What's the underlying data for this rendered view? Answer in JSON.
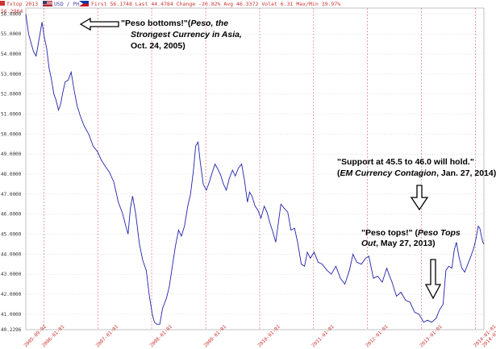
{
  "header": {
    "source": "fxtop 2013",
    "pair": "USD / PHP",
    "stats": "First 56.1748 Last 44.4784 Change -20.82% Avg 46.3372 Volat 6.31 Max/Min 39.97%",
    "top_value": "56.2964",
    "colors": {
      "us_flag_blue": "#3c3b6e",
      "us_flag_red": "#b22234",
      "ph_flag_blue": "#0038a8",
      "ph_flag_red": "#ce1126",
      "text_blue": "#4444aa"
    }
  },
  "annotations": [
    {
      "id": "peso-bottoms",
      "lines": [
        [
          {
            "t": "\"Peso bottoms!\"(",
            "i": false
          },
          {
            "t": "Peso, the",
            "i": true
          }
        ],
        [
          {
            "t": "Strongest Currency in Asia,",
            "i": true
          }
        ],
        [
          {
            "t": "Oct. 24, 2005)",
            "i": false
          }
        ]
      ],
      "arrow": "left"
    },
    {
      "id": "support",
      "lines": [
        [
          {
            "t": "\"Support at 45.5 to 46.0 will hold.\"",
            "i": false
          }
        ],
        [
          {
            "t": "(",
            "i": false
          },
          {
            "t": "EM Currency Contagion",
            "i": true
          },
          {
            "t": ", Jan. 27, 2014)",
            "i": false
          }
        ]
      ],
      "arrow": "down"
    },
    {
      "id": "peso-tops",
      "lines": [
        [
          {
            "t": "\"Peso tops!\" (",
            "i": false
          },
          {
            "t": "Peso Tops",
            "i": true
          }
        ],
        [
          {
            "t": "Out",
            "i": true
          },
          {
            "t": ", May 27, 2013)",
            "i": false
          }
        ]
      ],
      "arrow": "down"
    }
  ],
  "chart_data": {
    "type": "line",
    "title": "",
    "xlabel": "",
    "ylabel": "",
    "ylim": [
      40.2296,
      56.2964
    ],
    "xlim": [
      "2005-09-01",
      "2014-02-27"
    ],
    "y_ticks": [
      "41.0000",
      "42.0000",
      "43.0000",
      "44.0000",
      "45.0000",
      "46.0000",
      "47.0000",
      "48.0000",
      "49.0000",
      "50.0000",
      "51.0000",
      "52.0000",
      "53.0000",
      "54.0000",
      "55.0000",
      "56.0000"
    ],
    "y_min_label": "40.2296",
    "x_ticks": [
      "2005-09-01",
      "2006-01-01",
      "2007-01-01",
      "2008-01-01",
      "2009-01-01",
      "2010-01-01",
      "2011-01-01",
      "2012-01-01",
      "2013-01-01",
      "2014-01-01",
      "2014-02-27"
    ],
    "grid": true,
    "line_color": "#2222aa",
    "series": [
      {
        "values": [
          [
            "2005-09-01",
            56.0
          ],
          [
            "2005-09-20",
            55.0
          ],
          [
            "2005-10-05",
            54.6
          ],
          [
            "2005-10-24",
            54.1
          ],
          [
            "2005-11-10",
            53.9
          ],
          [
            "2005-12-01",
            54.8
          ],
          [
            "2005-12-20",
            55.6
          ],
          [
            "2006-01-05",
            54.8
          ],
          [
            "2006-01-20",
            54.3
          ],
          [
            "2006-02-05",
            53.3
          ],
          [
            "2006-02-20",
            52.8
          ],
          [
            "2006-03-10",
            52.0
          ],
          [
            "2006-03-25",
            51.7
          ],
          [
            "2006-04-10",
            51.2
          ],
          [
            "2006-04-25",
            51.5
          ],
          [
            "2006-05-10",
            52.1
          ],
          [
            "2006-05-25",
            52.6
          ],
          [
            "2006-06-15",
            52.7
          ],
          [
            "2006-07-05",
            53.1
          ],
          [
            "2006-07-25",
            52.2
          ],
          [
            "2006-08-15",
            51.4
          ],
          [
            "2006-09-05",
            50.9
          ],
          [
            "2006-10-01",
            50.4
          ],
          [
            "2006-11-01",
            50.0
          ],
          [
            "2006-12-01",
            49.4
          ],
          [
            "2007-01-01",
            49.1
          ],
          [
            "2007-01-25",
            48.7
          ],
          [
            "2007-02-20",
            48.4
          ],
          [
            "2007-03-20",
            48.1
          ],
          [
            "2007-04-20",
            47.6
          ],
          [
            "2007-05-20",
            46.6
          ],
          [
            "2007-06-20",
            46.0
          ],
          [
            "2007-07-10",
            45.4
          ],
          [
            "2007-07-25",
            45.0
          ],
          [
            "2007-08-10",
            46.3
          ],
          [
            "2007-08-25",
            46.9
          ],
          [
            "2007-09-15",
            46.0
          ],
          [
            "2007-10-10",
            44.5
          ],
          [
            "2007-11-01",
            43.7
          ],
          [
            "2007-11-25",
            43.2
          ],
          [
            "2007-12-15",
            42.0
          ],
          [
            "2008-01-05",
            41.0
          ],
          [
            "2008-01-20",
            40.6
          ],
          [
            "2008-02-05",
            40.5
          ],
          [
            "2008-02-25",
            40.5
          ],
          [
            "2008-03-15",
            41.3
          ],
          [
            "2008-04-10",
            41.8
          ],
          [
            "2008-04-30",
            42.4
          ],
          [
            "2008-05-20",
            43.4
          ],
          [
            "2008-06-10",
            44.4
          ],
          [
            "2008-07-01",
            45.2
          ],
          [
            "2008-07-20",
            44.9
          ],
          [
            "2008-08-10",
            45.4
          ],
          [
            "2008-09-01",
            46.4
          ],
          [
            "2008-09-20",
            47.0
          ],
          [
            "2008-10-10",
            48.2
          ],
          [
            "2008-10-25",
            49.4
          ],
          [
            "2008-11-10",
            49.6
          ],
          [
            "2008-11-25",
            48.6
          ],
          [
            "2008-12-15",
            47.5
          ],
          [
            "2009-01-05",
            47.2
          ],
          [
            "2009-01-25",
            47.6
          ],
          [
            "2009-02-15",
            48.1
          ],
          [
            "2009-03-05",
            48.5
          ],
          [
            "2009-03-20",
            48.3
          ],
          [
            "2009-04-10",
            48.0
          ],
          [
            "2009-05-01",
            47.5
          ],
          [
            "2009-05-20",
            47.2
          ],
          [
            "2009-06-10",
            47.8
          ],
          [
            "2009-07-01",
            48.2
          ],
          [
            "2009-07-20",
            47.9
          ],
          [
            "2009-08-10",
            48.3
          ],
          [
            "2009-09-01",
            48.5
          ],
          [
            "2009-09-20",
            47.7
          ],
          [
            "2009-10-10",
            46.6
          ],
          [
            "2009-10-25",
            47.1
          ],
          [
            "2009-11-10",
            46.9
          ],
          [
            "2009-12-01",
            46.4
          ],
          [
            "2009-12-20",
            46.2
          ],
          [
            "2010-01-10",
            45.8
          ],
          [
            "2010-02-01",
            46.4
          ],
          [
            "2010-02-20",
            46.1
          ],
          [
            "2010-03-10",
            45.6
          ],
          [
            "2010-04-01",
            45.1
          ],
          [
            "2010-04-20",
            44.6
          ],
          [
            "2010-05-10",
            45.7
          ],
          [
            "2010-05-25",
            46.5
          ],
          [
            "2010-06-15",
            46.3
          ],
          [
            "2010-07-10",
            46.1
          ],
          [
            "2010-08-01",
            45.2
          ],
          [
            "2010-08-25",
            45.3
          ],
          [
            "2010-09-15",
            44.6
          ],
          [
            "2010-10-10",
            43.5
          ],
          [
            "2010-11-01",
            43.4
          ],
          [
            "2010-11-20",
            44.1
          ],
          [
            "2010-12-10",
            43.8
          ],
          [
            "2011-01-05",
            44.1
          ],
          [
            "2011-02-01",
            43.6
          ],
          [
            "2011-03-01",
            43.5
          ],
          [
            "2011-04-01",
            43.2
          ],
          [
            "2011-05-01",
            43.0
          ],
          [
            "2011-06-01",
            43.4
          ],
          [
            "2011-07-01",
            42.8
          ],
          [
            "2011-08-01",
            42.5
          ],
          [
            "2011-09-01",
            43.2
          ],
          [
            "2011-09-25",
            44.0
          ],
          [
            "2011-10-20",
            43.6
          ],
          [
            "2011-11-20",
            43.5
          ],
          [
            "2011-12-20",
            43.8
          ],
          [
            "2012-01-10",
            43.9
          ],
          [
            "2012-02-10",
            42.8
          ],
          [
            "2012-03-10",
            42.9
          ],
          [
            "2012-04-10",
            42.6
          ],
          [
            "2012-05-10",
            43.3
          ],
          [
            "2012-05-25",
            43.0
          ],
          [
            "2012-06-15",
            42.6
          ],
          [
            "2012-07-15",
            41.9
          ],
          [
            "2012-08-15",
            42.1
          ],
          [
            "2012-09-15",
            41.7
          ],
          [
            "2012-10-15",
            41.6
          ],
          [
            "2012-11-15",
            41.1
          ],
          [
            "2012-12-15",
            41.0
          ],
          [
            "2013-01-15",
            40.6
          ],
          [
            "2013-02-10",
            40.7
          ],
          [
            "2013-03-10",
            40.6
          ],
          [
            "2013-04-10",
            40.8
          ],
          [
            "2013-05-01",
            41.2
          ],
          [
            "2013-05-27",
            41.5
          ],
          [
            "2013-06-15",
            43.2
          ],
          [
            "2013-07-05",
            43.4
          ],
          [
            "2013-07-25",
            43.3
          ],
          [
            "2013-08-10",
            44.2
          ],
          [
            "2013-08-25",
            44.6
          ],
          [
            "2013-09-10",
            43.9
          ],
          [
            "2013-10-01",
            43.3
          ],
          [
            "2013-10-20",
            43.1
          ],
          [
            "2013-11-10",
            43.5
          ],
          [
            "2013-12-01",
            43.9
          ],
          [
            "2013-12-20",
            44.3
          ],
          [
            "2014-01-05",
            44.8
          ],
          [
            "2014-01-20",
            45.4
          ],
          [
            "2014-01-30",
            45.3
          ],
          [
            "2014-02-10",
            44.9
          ],
          [
            "2014-02-20",
            44.6
          ],
          [
            "2014-02-27",
            44.5
          ]
        ]
      }
    ]
  }
}
